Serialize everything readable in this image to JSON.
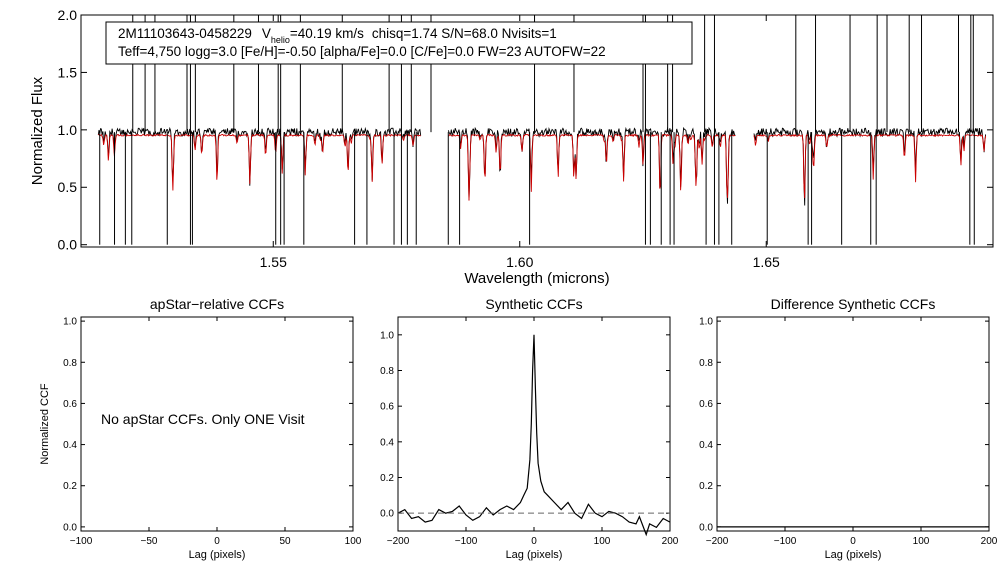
{
  "spectrum": {
    "star_id": "2M11103643-0458229",
    "vhelio_symbol": "V",
    "vhelio_subscript": "helio",
    "vhelio_value": "=40.19 km/s",
    "stats_line": "chisq=1.74  S/N=68.0  Nvisits=1",
    "params_line": "Teff=4,750 logg=3.0 [Fe/H]=-0.50 [alpha/Fe]=0.0 [C/Fe]=0.0 FW=23 AUTOFW=22"
  },
  "ccf_message": "No apStar CCFs.  Only ONE Visit",
  "colors": {
    "observed": "#000000",
    "model": "#cc0000",
    "zero_line": "#666666"
  },
  "chart_data": [
    {
      "type": "line",
      "title": "",
      "xlabel": "Wavelength (microns)",
      "ylabel": "Normalized Flux",
      "xlim": [
        1.511,
        1.696
      ],
      "ylim": [
        -0.02,
        2.0
      ],
      "xticks": [
        1.55,
        1.6,
        1.65
      ],
      "xtick_labels": [
        "1.55",
        "1.60",
        "1.65"
      ],
      "yticks": [
        0.0,
        0.5,
        1.0,
        1.5,
        2.0
      ],
      "ytick_labels": [
        "0.0",
        "0.5",
        "1.0",
        "1.5",
        "2.0"
      ],
      "chips": [
        [
          1.5145,
          1.5799
        ],
        [
          1.5855,
          1.6437
        ],
        [
          1.6475,
          1.6945
        ]
      ],
      "series": [
        {
          "name": "observed",
          "continuum": 0.98,
          "bad_pixels_low": [
            1.5148,
            1.5178,
            1.52,
            1.5213,
            1.5285,
            1.5332,
            1.5336,
            1.5505,
            1.5515,
            1.5522,
            1.5562,
            1.5665,
            1.569,
            1.5745,
            1.576,
            1.5772,
            1.579,
            1.5855,
            1.5878,
            1.602,
            1.6255,
            1.6265,
            1.6287,
            1.6305,
            1.6313,
            1.6378,
            1.6395,
            1.6404,
            1.643,
            1.6502,
            1.6585,
            1.6592,
            1.6653,
            1.6712,
            1.6723,
            1.6913,
            1.6922
          ],
          "bad_pixels_high": [
            1.5215,
            1.524,
            1.526,
            1.5325,
            1.5332,
            1.5342,
            1.542,
            1.547,
            1.551,
            1.5515,
            1.5555,
            1.564,
            1.5735,
            1.576,
            1.578,
            1.582,
            1.603,
            1.611,
            1.625,
            1.6255,
            1.63,
            1.631,
            1.6375,
            1.6395,
            1.656,
            1.66,
            1.667,
            1.6725,
            1.6745,
            1.679,
            1.6815,
            1.689,
            1.6915,
            1.692
          ]
        },
        {
          "name": "model",
          "continuum": 0.96
        }
      ]
    },
    {
      "type": "line",
      "title": "apStar−relative CCFs",
      "xlabel": "Lag (pixels)",
      "ylabel": "Normalized CCF",
      "xlim": [
        -100,
        100
      ],
      "ylim": [
        -0.02,
        1.02
      ],
      "xticks": [
        -100,
        -50,
        0,
        50,
        100
      ],
      "xtick_labels": [
        "−100",
        "−50",
        "0",
        "50",
        "100"
      ],
      "yticks": [
        0.0,
        0.2,
        0.4,
        0.6,
        0.8,
        1.0
      ],
      "ytick_labels": [
        "0.0",
        "0.2",
        "0.4",
        "0.6",
        "0.8",
        "1.0"
      ],
      "series": []
    },
    {
      "type": "line",
      "title": "Synthetic CCFs",
      "xlabel": "Lag (pixels)",
      "ylabel": "",
      "xlim": [
        -200,
        200
      ],
      "ylim": [
        -0.1,
        1.1
      ],
      "xticks": [
        -200,
        -100,
        0,
        100,
        200
      ],
      "xtick_labels": [
        "−200",
        "−100",
        "0",
        "100",
        "200"
      ],
      "yticks": [
        0.0,
        0.2,
        0.4,
        0.6,
        0.8,
        1.0
      ],
      "ytick_labels": [
        "0.0",
        "0.2",
        "0.4",
        "0.6",
        "0.8",
        "1.0"
      ],
      "series": [
        {
          "name": "ccf",
          "x": [
            -200,
            -190,
            -180,
            -170,
            -160,
            -150,
            -140,
            -130,
            -120,
            -110,
            -100,
            -90,
            -80,
            -70,
            -60,
            -50,
            -40,
            -30,
            -20,
            -15,
            -10,
            -6,
            -4,
            -2,
            0,
            2,
            4,
            6,
            10,
            15,
            20,
            30,
            40,
            50,
            60,
            70,
            80,
            90,
            100,
            110,
            120,
            130,
            140,
            150,
            155,
            160,
            165,
            170,
            180,
            190,
            200
          ],
          "y": [
            0.0,
            0.02,
            -0.03,
            -0.02,
            -0.05,
            -0.04,
            0.02,
            0.0,
            0.01,
            0.04,
            -0.01,
            -0.04,
            -0.02,
            0.03,
            -0.01,
            0.02,
            0.04,
            0.02,
            0.06,
            0.1,
            0.14,
            0.3,
            0.5,
            0.8,
            1.0,
            0.7,
            0.45,
            0.28,
            0.18,
            0.12,
            0.1,
            0.06,
            0.02,
            0.06,
            0.0,
            -0.03,
            0.05,
            0.0,
            -0.02,
            0.01,
            0.0,
            -0.02,
            -0.05,
            -0.06,
            -0.02,
            -0.07,
            -0.12,
            -0.06,
            -0.08,
            -0.03,
            -0.05
          ]
        },
        {
          "name": "zero",
          "style": "dashed",
          "x": [
            -200,
            200
          ],
          "y": [
            0.0,
            0.0
          ]
        }
      ]
    },
    {
      "type": "line",
      "title": "Difference Synthetic CCFs",
      "xlabel": "Lag (pixels)",
      "ylabel": "",
      "xlim": [
        -200,
        200
      ],
      "ylim": [
        -0.02,
        1.02
      ],
      "xticks": [
        -200,
        -100,
        0,
        100,
        200
      ],
      "xtick_labels": [
        "−200",
        "−100",
        "0",
        "100",
        "200"
      ],
      "yticks": [
        0.0,
        0.2,
        0.4,
        0.6,
        0.8,
        1.0
      ],
      "ytick_labels": [
        "0.0",
        "0.2",
        "0.4",
        "0.6",
        "0.8",
        "1.0"
      ],
      "series": [
        {
          "name": "flat",
          "x": [
            -200,
            200
          ],
          "y": [
            0.0,
            0.0
          ]
        }
      ]
    }
  ]
}
